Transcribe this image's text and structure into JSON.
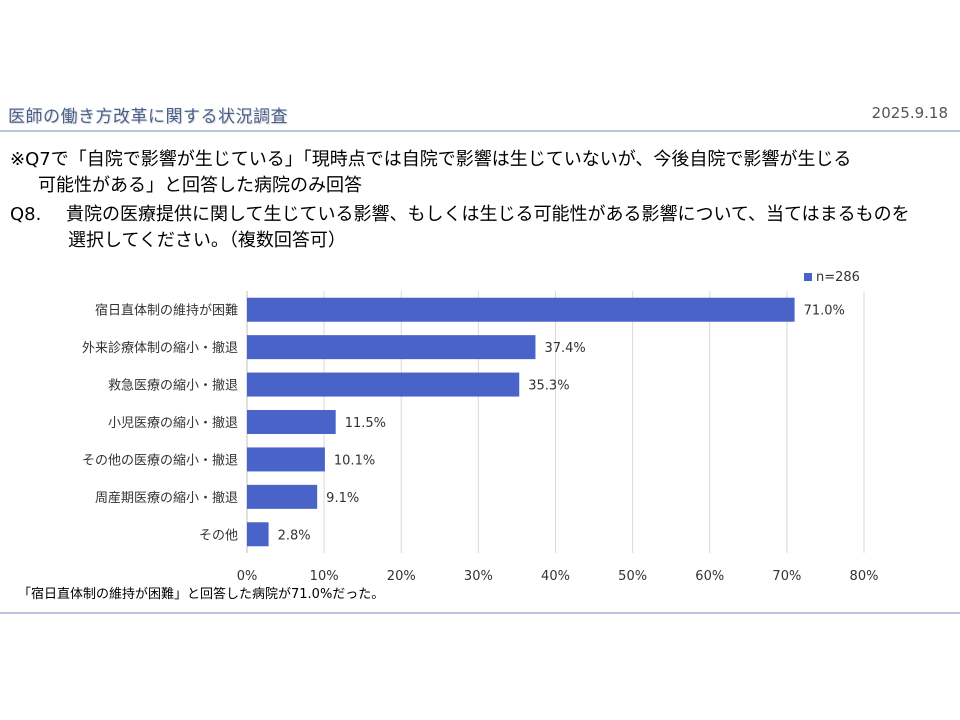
{
  "header": {
    "title": "医師の働き方改革に関する状況調査",
    "date": "2025.9.18"
  },
  "note": {
    "line1": "※Q7で「自院で影響が生じている」「現時点では自院で影響は生じていないが、今後自院で影響が生じる",
    "line2": "可能性がある」と回答した病院のみ回答"
  },
  "question": {
    "number": "Q8.",
    "line1": "貴院の医療提供に関して生じている影響、もしくは生じる可能性がある影響について、当てはまるものを",
    "line2": "選択してください。（複数回答可）"
  },
  "chart_data": {
    "type": "bar",
    "orientation": "horizontal",
    "categories": [
      "宿日直体制の維持が困難",
      "外来診療体制の縮小・撤退",
      "救急医療の縮小・撤退",
      "小児医療の縮小・撤退",
      "その他の医療の縮小・撤退",
      "周産期医療の縮小・撤退",
      "その他"
    ],
    "series": [
      {
        "name": "n=286",
        "values": [
          71.0,
          37.4,
          35.3,
          11.5,
          10.1,
          9.1,
          2.8
        ],
        "labels": [
          "71.0%",
          "37.4%",
          "35.3%",
          "11.5%",
          "10.1%",
          "9.1%",
          "2.8%"
        ],
        "color": "#4a63c8"
      }
    ],
    "xlim": [
      0,
      80
    ],
    "xticks": [
      0,
      10,
      20,
      30,
      40,
      50,
      60,
      70,
      80
    ],
    "xtick_labels": [
      "0%",
      "10%",
      "20%",
      "30%",
      "40%",
      "50%",
      "60%",
      "70%",
      "80%"
    ],
    "grid": true,
    "legend": "top-right"
  },
  "summary": "「宿日直体制の維持が困難」と回答した病院が71.0%だった。"
}
